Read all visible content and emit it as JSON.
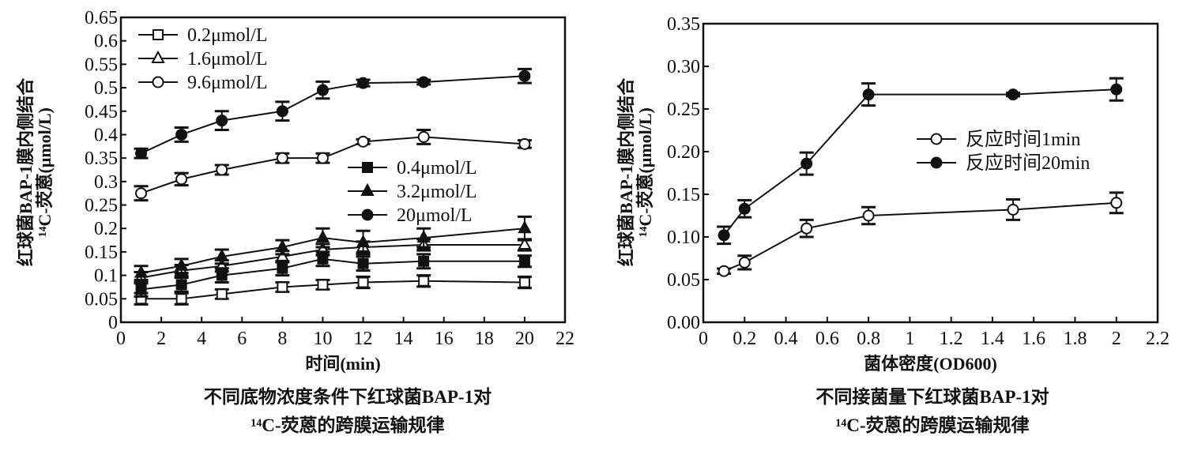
{
  "chart_data": [
    {
      "type": "line",
      "title": "不同底物浓度条件下红球菌BAP-1对",
      "title_line2": "¹⁴C-荧蒽的跨膜运输规律",
      "xlabel": "时间(min)",
      "ylabel": "红球菌BAP-1膜内侧结合",
      "ylabel_line2": "¹⁴C-荧蒽(μmol/L)",
      "xlim": [
        0,
        22
      ],
      "ylim": [
        0,
        0.65
      ],
      "xticks": [
        "0",
        "2",
        "4",
        "6",
        "8",
        "10",
        "12",
        "14",
        "16",
        "18",
        "20",
        "22"
      ],
      "yticks": [
        "0",
        "0.05",
        "0.1",
        "0.15",
        "0.2",
        "0.25",
        "0.3",
        "0.35",
        "0.4",
        "0.45",
        "0.5",
        "0.55",
        "0.6",
        "0.65"
      ],
      "x": [
        1,
        3,
        5,
        8,
        10,
        12,
        15,
        20
      ],
      "series": [
        {
          "name": "0.2μmol/L",
          "marker": "open-square",
          "values": [
            0.05,
            0.05,
            0.06,
            0.075,
            0.08,
            0.085,
            0.088,
            0.085
          ],
          "err": [
            0.012,
            0.012,
            0.01,
            0.01,
            0.01,
            0.012,
            0.012,
            0.012
          ]
        },
        {
          "name": "1.6μmol/L",
          "marker": "open-triangle",
          "values": [
            0.095,
            0.11,
            0.12,
            0.14,
            0.155,
            0.16,
            0.165,
            0.165
          ],
          "err": [
            0.012,
            0.012,
            0.012,
            0.012,
            0.012,
            0.012,
            0.012,
            0.012
          ]
        },
        {
          "name": "9.6μmol/L",
          "marker": "open-circle",
          "values": [
            0.275,
            0.305,
            0.325,
            0.35,
            0.35,
            0.385,
            0.395,
            0.38
          ],
          "err": [
            0.015,
            0.013,
            0.01,
            0.01,
            0.01,
            0.005,
            0.015,
            0.008
          ]
        },
        {
          "name": "0.4μmol/L",
          "marker": "filled-square",
          "values": [
            0.07,
            0.08,
            0.1,
            0.115,
            0.135,
            0.125,
            0.13,
            0.13
          ],
          "err": [
            0.015,
            0.015,
            0.015,
            0.015,
            0.015,
            0.015,
            0.015,
            0.012
          ]
        },
        {
          "name": "3.2μmol/L",
          "marker": "filled-triangle",
          "values": [
            0.105,
            0.12,
            0.14,
            0.16,
            0.18,
            0.17,
            0.18,
            0.2
          ],
          "err": [
            0.015,
            0.015,
            0.015,
            0.015,
            0.02,
            0.025,
            0.02,
            0.025
          ]
        },
        {
          "name": "20μmol/L",
          "marker": "filled-circle",
          "values": [
            0.36,
            0.4,
            0.43,
            0.45,
            0.495,
            0.51,
            0.512,
            0.525
          ],
          "err": [
            0.01,
            0.015,
            0.02,
            0.02,
            0.018,
            0.007,
            0.005,
            0.015
          ]
        }
      ],
      "legends": [
        [
          "0.2μmol/L",
          "1.6μmol/L",
          "9.6μmol/L"
        ],
        [
          "0.4μmol/L",
          "3.2μmol/L",
          "20μmol/L"
        ]
      ]
    },
    {
      "type": "line",
      "title": "不同接菌量下红球菌BAP-1对",
      "title_line2": "¹⁴C-荧蒽的跨膜运输规律",
      "xlabel": "菌体密度(OD600)",
      "ylabel": "红球菌BAP-1膜内侧结合",
      "ylabel_line2": "¹⁴C-荧蒽(μmol/L)",
      "xlim": [
        0,
        2.2
      ],
      "ylim": [
        0,
        0.35
      ],
      "xticks": [
        "0",
        "0.2",
        "0.4",
        "0.6",
        "0.8",
        "1",
        "1.2",
        "1.4",
        "1.6",
        "1.8",
        "2",
        "2.2"
      ],
      "yticks": [
        "0.00",
        "0.05",
        "0.10",
        "0.15",
        "0.20",
        "0.25",
        "0.30",
        "0.35"
      ],
      "x": [
        0.1,
        0.2,
        0.5,
        0.8,
        1.5,
        2
      ],
      "series": [
        {
          "name": "反应时间1min",
          "marker": "open-circle",
          "values": [
            0.06,
            0.07,
            0.11,
            0.125,
            0.132,
            0.14
          ],
          "err": [
            0.003,
            0.008,
            0.01,
            0.01,
            0.012,
            0.012
          ]
        },
        {
          "name": "反应时间20min",
          "marker": "filled-circle",
          "values": [
            0.102,
            0.133,
            0.186,
            0.267,
            0.267,
            0.273
          ],
          "err": [
            0.01,
            0.01,
            0.013,
            0.013,
            0.002,
            0.013
          ]
        }
      ]
    }
  ]
}
